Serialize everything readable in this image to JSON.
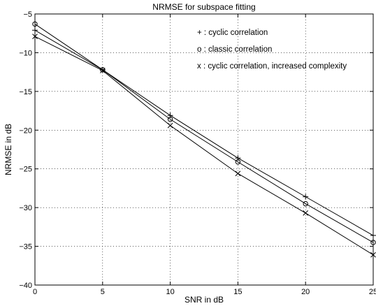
{
  "chart_data": {
    "type": "line",
    "title": "NRMSE for subspace fitting",
    "xlabel": "SNR in dB",
    "ylabel": "NRMSE in dB",
    "xlim": [
      0,
      25
    ],
    "ylim": [
      -40,
      -5
    ],
    "xticks": [
      0,
      5,
      10,
      15,
      20,
      25
    ],
    "yticks": [
      -40,
      -35,
      -30,
      -25,
      -20,
      -15,
      -10,
      -5
    ],
    "xtick_labels": [
      "0",
      "5",
      "10",
      "15",
      "20",
      "25"
    ],
    "ytick_labels": [
      "−40",
      "−35",
      "−30",
      "−25",
      "−20",
      "−15",
      "−10",
      "−5"
    ],
    "grid": true,
    "legend_placement": "top-right",
    "x": [
      0,
      5,
      10,
      15,
      20,
      25
    ],
    "series": [
      {
        "name": "cyclic correlation",
        "marker": "+",
        "legend_text": "+ : cyclic correlation",
        "values": [
          -7.1,
          -12.2,
          -18.1,
          -23.6,
          -28.6,
          -33.6
        ]
      },
      {
        "name": "classic correlation",
        "marker": "o",
        "legend_text": "o : classic correlation",
        "values": [
          -6.3,
          -12.2,
          -18.6,
          -24.1,
          -29.5,
          -34.5
        ]
      },
      {
        "name": "cyclic correlation, increased complexity",
        "marker": "x",
        "legend_text": "x : cyclic correlation, increased complexity",
        "values": [
          -7.9,
          -12.3,
          -19.4,
          -25.6,
          -30.7,
          -36.1
        ]
      }
    ]
  }
}
